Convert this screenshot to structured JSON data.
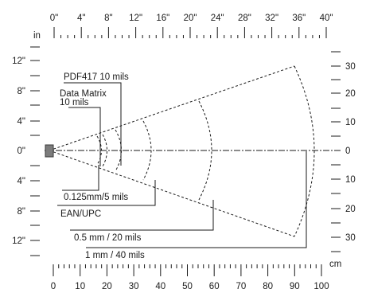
{
  "top_scale": {
    "unit": "in",
    "labels": [
      "0\"",
      "4\"",
      "8\"",
      "12\"",
      "16\"",
      "20\"",
      "24\"",
      "28\"",
      "32\"",
      "36\"",
      "40\""
    ]
  },
  "bottom_scale": {
    "unit": "cm",
    "labels": [
      "0",
      "10",
      "20",
      "30",
      "40",
      "50",
      "60",
      "70",
      "80",
      "90",
      "100"
    ]
  },
  "left_scale": {
    "labels": [
      "12\"",
      "8\"",
      "4\"",
      "0\"",
      "4\"",
      "8\"",
      "12\""
    ]
  },
  "right_scale": {
    "labels": [
      "30",
      "20",
      "10",
      "0",
      "10",
      "20",
      "30"
    ]
  },
  "callouts": {
    "pdf417": "PDF417 10 mils",
    "data_matrix_line1": "Data Matrix",
    "data_matrix_line2": "10 mils",
    "small": "0.125mm/5 mils",
    "ean": "EAN/UPC",
    "mm05": "0.5 mm / 20 mils",
    "mm1": "1 mm / 40 mils"
  }
}
